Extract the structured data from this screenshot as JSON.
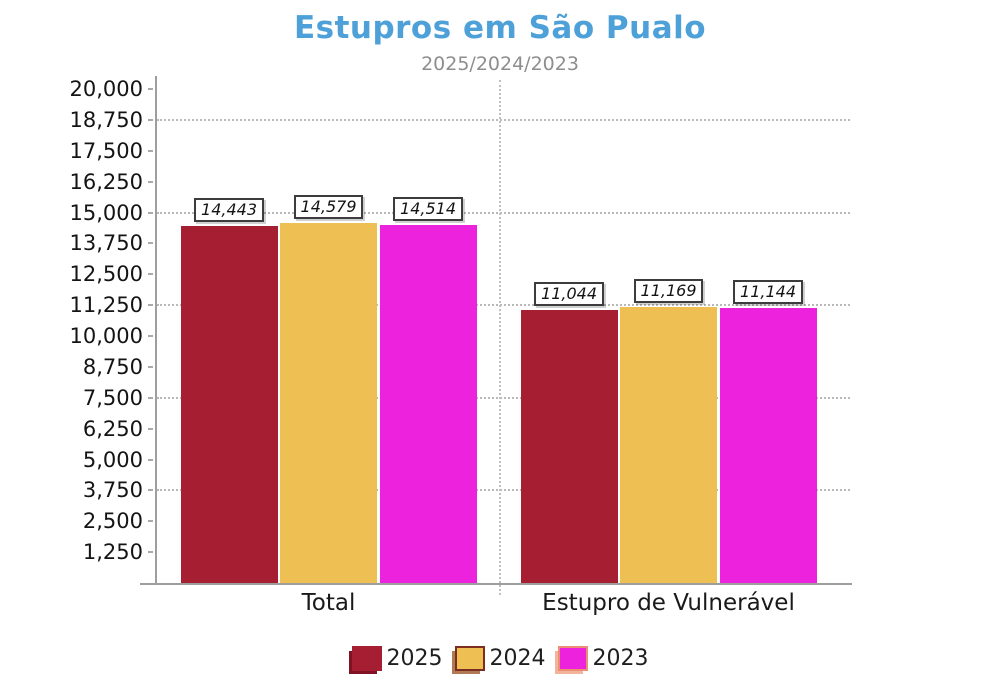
{
  "chart_data": {
    "type": "bar",
    "title": "Estupros em São Pualo",
    "subtitle": "2025/2024/2023",
    "categories": [
      "Total",
      "Estupro de Vulnerável"
    ],
    "series": [
      {
        "name": "2025",
        "color": "#A61E32",
        "swatch_border": "#A61E32",
        "swatch_shadow": "#801223",
        "values": [
          14443,
          11044
        ]
      },
      {
        "name": "2024",
        "color": "#EEBF52",
        "swatch_border": "#7B2D1F",
        "swatch_shadow": "#B07A55",
        "values": [
          14579,
          11169
        ]
      },
      {
        "name": "2023",
        "color": "#ED22DC",
        "swatch_border": "#EA8F73",
        "swatch_shadow": "#F2B49B",
        "values": [
          14514,
          11144
        ]
      }
    ],
    "value_labels": [
      [
        "14,443",
        "14,579",
        "14,514"
      ],
      [
        "11,044",
        "11,169",
        "11,144"
      ]
    ],
    "y_ticks": [
      "1,250",
      "2,500",
      "3,750",
      "5,000",
      "6,250",
      "7,500",
      "8,750",
      "10,000",
      "11,250",
      "12,500",
      "13,750",
      "15,000",
      "16,250",
      "17,500",
      "18,750",
      "20,000"
    ],
    "ylim": [
      0,
      20000
    ],
    "y_tick_step": 1250,
    "grid_values": [
      3750,
      7500,
      11250,
      15000,
      18750
    ],
    "legend_position": "bottom",
    "grid_on": true,
    "colors": {
      "title": "#4DA0D8",
      "subtitle": "#8E8E8E",
      "axis": "#9E9E9E"
    }
  }
}
